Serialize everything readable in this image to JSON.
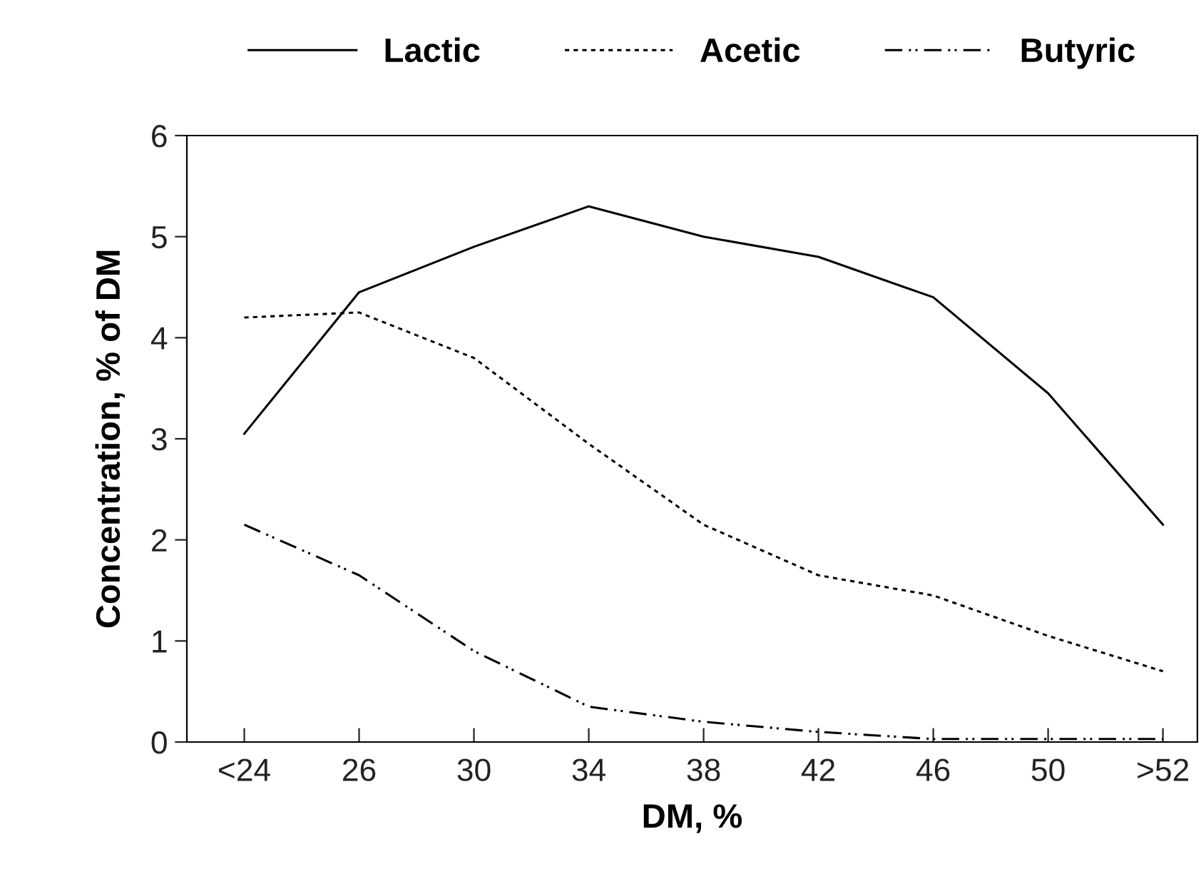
{
  "chart_data": {
    "type": "line",
    "xlabel": "DM, %",
    "ylabel": "Concentration, % of DM",
    "categories": [
      "<24",
      "26",
      "30",
      "34",
      "38",
      "42",
      "46",
      "50",
      ">52"
    ],
    "series": [
      {
        "name": "Lactic",
        "color": "#000000",
        "line_style": "solid",
        "values": [
          3.05,
          4.45,
          4.9,
          5.3,
          5.0,
          4.8,
          4.4,
          3.45,
          2.15
        ]
      },
      {
        "name": "Acetic",
        "color": "#000000",
        "line_style": "dashed",
        "values": [
          4.2,
          4.25,
          3.8,
          2.95,
          2.15,
          1.65,
          1.45,
          1.05,
          0.7
        ]
      },
      {
        "name": "Butyric",
        "color": "#000000",
        "line_style": "dashdot",
        "values": [
          2.15,
          1.65,
          0.9,
          0.35,
          0.2,
          0.1,
          0.03,
          0.03,
          0.03
        ]
      }
    ],
    "ylim": [
      0,
      6
    ],
    "yticks": [
      0,
      1,
      2,
      3,
      4,
      5,
      6
    ],
    "grid": false,
    "legend": "top",
    "marker": "none"
  }
}
